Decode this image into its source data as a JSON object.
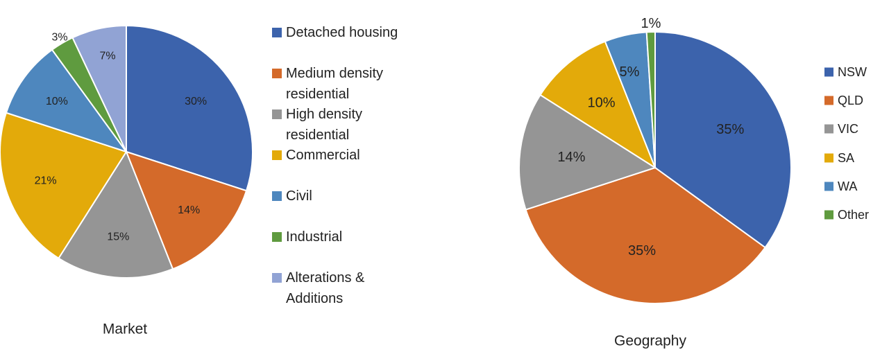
{
  "chart_data": [
    {
      "type": "pie",
      "title": "Market",
      "categories": [
        "Detached housing",
        "Medium density residential",
        "High density residential",
        "Commercial",
        "Civil",
        "Industrial",
        "Alterations & Additions"
      ],
      "values": [
        30,
        14,
        15,
        21,
        10,
        3,
        7
      ],
      "labels": [
        "30%",
        "14%",
        "15%",
        "21%",
        "10%",
        "3%",
        "7%"
      ],
      "colors": [
        "#3C63AC",
        "#D46A2A",
        "#959595",
        "#E3AA0A",
        "#4E87BE",
        "#5F9B3F",
        "#91A3D4"
      ],
      "legend": {
        "position": "right",
        "entries": [
          [
            "Detached housing"
          ],
          [
            "Medium density",
            "residential"
          ],
          [
            "High density",
            "residential"
          ],
          [
            "Commercial"
          ],
          [
            "Civil"
          ],
          [
            "Industrial"
          ],
          [
            "Alterations &",
            "Additions"
          ]
        ]
      }
    },
    {
      "type": "pie",
      "title": "Geography",
      "categories": [
        "NSW",
        "QLD",
        "VIC",
        "SA",
        "WA",
        "Other"
      ],
      "values": [
        35,
        35,
        14,
        10,
        5,
        1
      ],
      "labels": [
        "35%",
        "35%",
        "14%",
        "10%",
        "5%",
        "1%"
      ],
      "colors": [
        "#3C63AC",
        "#D46A2A",
        "#959595",
        "#E3AA0A",
        "#4E87BE",
        "#5F9B3F"
      ],
      "legend": {
        "position": "right",
        "entries": [
          [
            "NSW"
          ],
          [
            "QLD"
          ],
          [
            "VIC"
          ],
          [
            "SA"
          ],
          [
            "WA"
          ],
          [
            "Other"
          ]
        ]
      }
    }
  ]
}
